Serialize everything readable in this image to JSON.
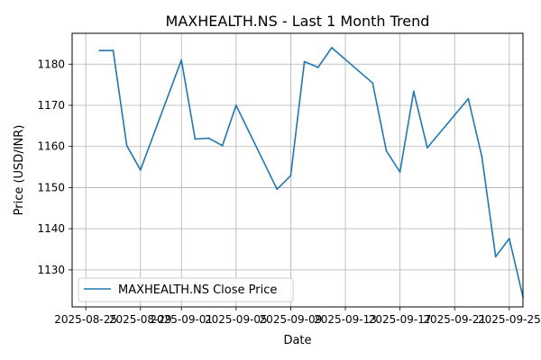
{
  "chart_data": {
    "type": "line",
    "title": "MAXHEALTH.NS - Last 1 Month Trend",
    "xlabel": "Date",
    "ylabel": "Price (USD/INR)",
    "x_range": [
      "2025-08-24",
      "2025-09-26"
    ],
    "ylim": [
      1121,
      1187.5
    ],
    "x_ticks": [
      "2025-08-25",
      "2025-08-29",
      "2025-09-01",
      "2025-09-05",
      "2025-09-09",
      "2025-09-13",
      "2025-09-17",
      "2025-09-21",
      "2025-09-25"
    ],
    "y_ticks": [
      1130,
      1140,
      1150,
      1160,
      1170,
      1180
    ],
    "grid": true,
    "legend_position": "lower-left",
    "series": [
      {
        "name": "MAXHEALTH.NS Close Price",
        "color": "#1f77b4",
        "points": [
          {
            "x": "2025-08-26",
            "y": 1183.3
          },
          {
            "x": "2025-08-27",
            "y": 1183.3
          },
          {
            "x": "2025-08-28",
            "y": 1160.2
          },
          {
            "x": "2025-08-29",
            "y": 1154.3
          },
          {
            "x": "2025-09-01",
            "y": 1181.0
          },
          {
            "x": "2025-09-02",
            "y": 1161.8
          },
          {
            "x": "2025-09-03",
            "y": 1162.0
          },
          {
            "x": "2025-09-04",
            "y": 1160.2
          },
          {
            "x": "2025-09-05",
            "y": 1170.0
          },
          {
            "x": "2025-09-08",
            "y": 1149.6
          },
          {
            "x": "2025-09-09",
            "y": 1152.9
          },
          {
            "x": "2025-09-10",
            "y": 1180.6
          },
          {
            "x": "2025-09-11",
            "y": 1179.2
          },
          {
            "x": "2025-09-12",
            "y": 1184.0
          },
          {
            "x": "2025-09-15",
            "y": 1175.4
          },
          {
            "x": "2025-09-16",
            "y": 1158.9
          },
          {
            "x": "2025-09-17",
            "y": 1153.8
          },
          {
            "x": "2025-09-18",
            "y": 1173.4
          },
          {
            "x": "2025-09-19",
            "y": 1159.7
          },
          {
            "x": "2025-09-22",
            "y": 1171.6
          },
          {
            "x": "2025-09-23",
            "y": 1157.4
          },
          {
            "x": "2025-09-24",
            "y": 1133.2
          },
          {
            "x": "2025-09-25",
            "y": 1137.6
          },
          {
            "x": "2025-09-26",
            "y": 1123.4
          }
        ]
      }
    ]
  }
}
